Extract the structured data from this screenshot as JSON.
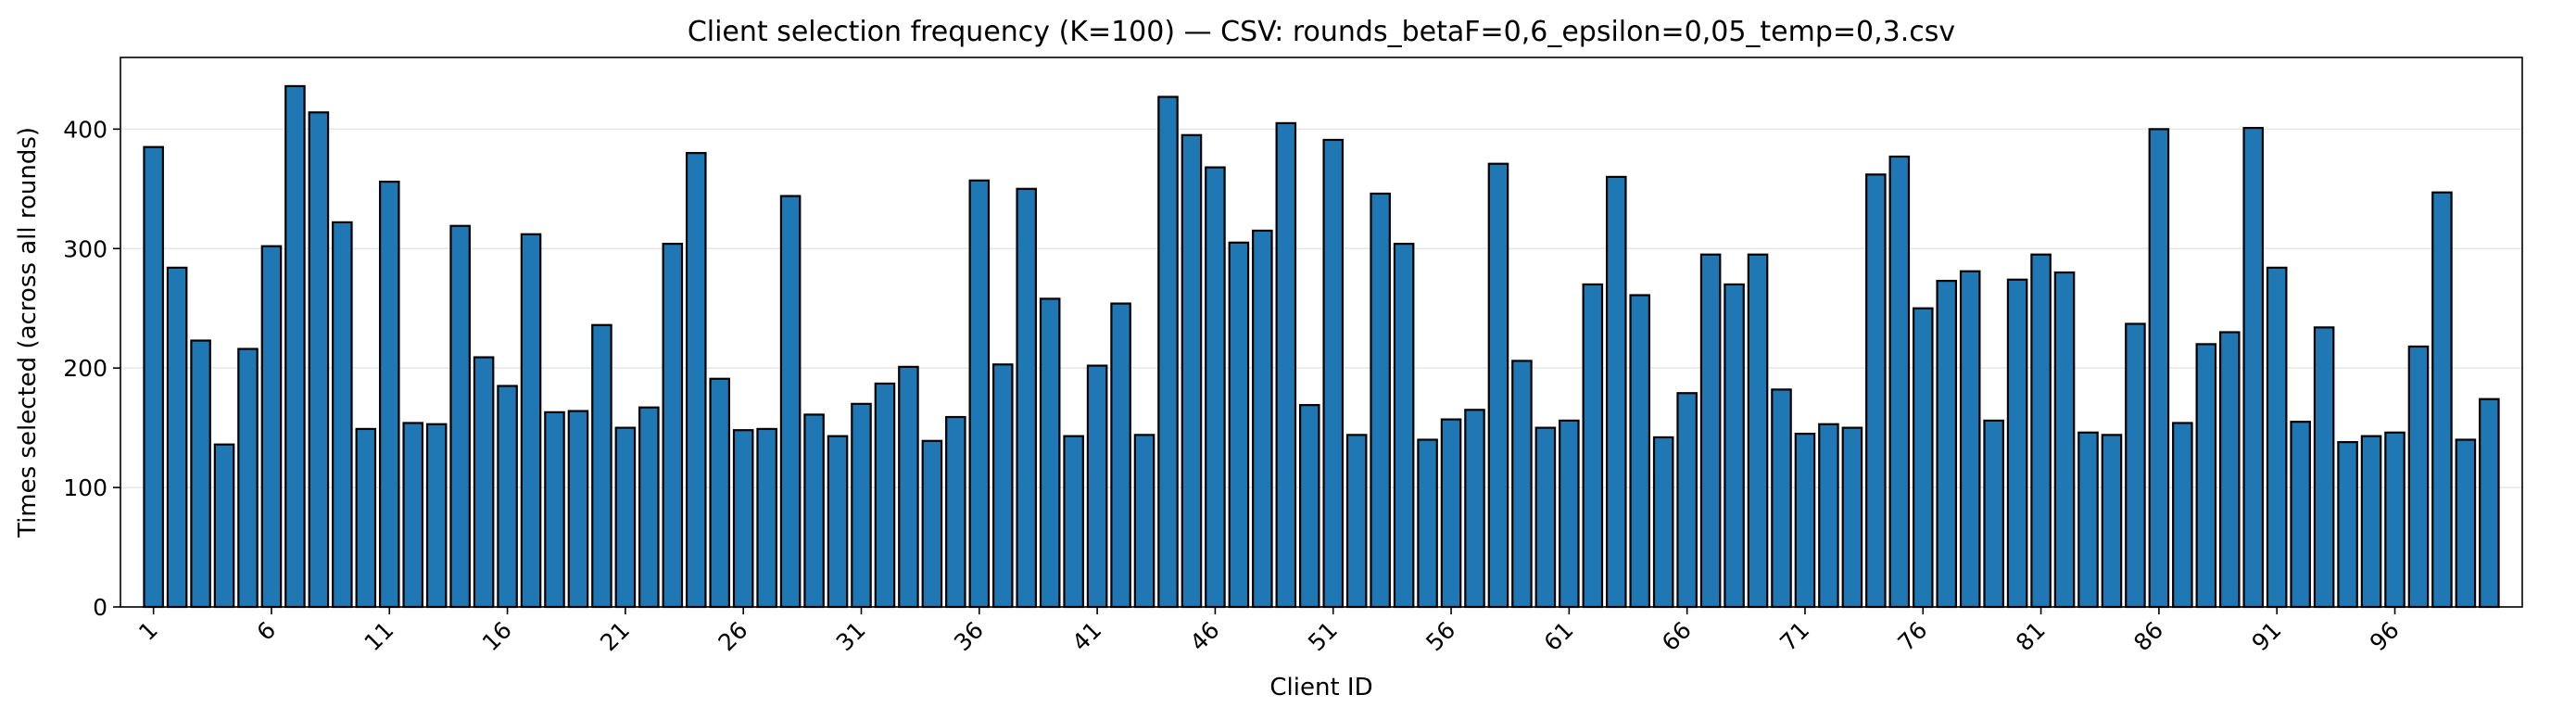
{
  "chart_data": {
    "type": "bar",
    "title": "Client selection frequency (K=100) — CSV: rounds_betaF=0,6_epsilon=0,05_temp=0,3.csv",
    "xlabel": "Client ID",
    "ylabel": "Times selected (across all rounds)",
    "ylim": [
      0,
      460
    ],
    "yticks": [
      0,
      100,
      200,
      300,
      400
    ],
    "xticks": [
      1,
      6,
      11,
      16,
      21,
      26,
      31,
      36,
      41,
      46,
      51,
      56,
      61,
      66,
      71,
      76,
      81,
      86,
      91,
      96
    ],
    "grid": "horizontal",
    "bar_color": "#1f77b4",
    "edge_color": "#000000",
    "x_start": 1,
    "values": [
      385,
      284,
      223,
      136,
      216,
      302,
      436,
      414,
      322,
      149,
      356,
      154,
      153,
      319,
      209,
      185,
      312,
      163,
      164,
      236,
      150,
      167,
      304,
      380,
      191,
      148,
      149,
      344,
      161,
      143,
      170,
      187,
      201,
      139,
      159,
      357,
      203,
      350,
      258,
      143,
      202,
      254,
      144,
      427,
      395,
      368,
      305,
      315,
      405,
      169,
      391,
      144,
      346,
      304,
      140,
      157,
      165,
      371,
      206,
      150,
      156,
      270,
      360,
      261,
      142,
      179,
      295,
      270,
      295,
      182,
      145,
      153,
      150,
      362,
      377,
      250,
      273,
      281,
      156,
      274,
      295,
      280,
      146,
      144,
      237,
      400,
      154,
      220,
      230,
      401,
      284,
      155,
      234,
      138,
      143,
      146,
      218,
      347,
      140,
      174
    ]
  }
}
